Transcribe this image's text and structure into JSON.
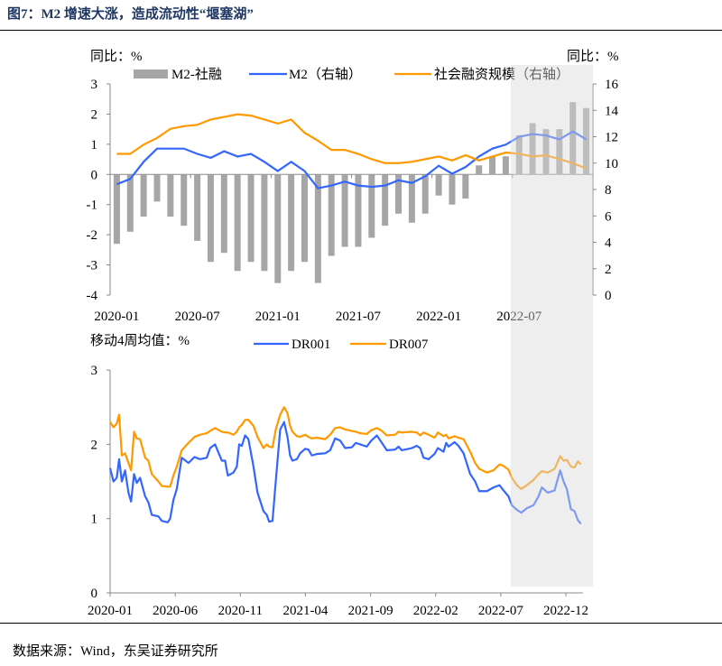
{
  "title": "图7：M2 增速大涨，造成流动性“堰塞湖”",
  "source": "数据来源：Wind，东吴证券研究所",
  "colors": {
    "bar": "#a6a6a6",
    "m2": "#3366ff",
    "tsf": "#ff9900",
    "dr001": "#3366ff",
    "dr007": "#ff9900",
    "shade": "#d9d9d9"
  },
  "chart_data": [
    {
      "type": "bar+line",
      "left_unit": "同比：%",
      "right_unit": "同比：%",
      "ylim_left": [
        -4,
        3
      ],
      "ylim_right": [
        0,
        16
      ],
      "yticks_left": [
        "3",
        "2",
        "1",
        "0",
        "-1",
        "-2",
        "-3",
        "-4"
      ],
      "yticks_right": [
        "16",
        "14",
        "12",
        "10",
        "8",
        "6",
        "4",
        "2",
        "0"
      ],
      "xtick_labels": [
        "2020-01",
        "2020-07",
        "2021-01",
        "2021-07",
        "2022-01",
        "2022-07"
      ],
      "legend": [
        "M2-社融",
        "M2（右轴）",
        "社会融资规模（右轴）"
      ],
      "shaded_from_index": 30,
      "bars": {
        "name": "M2-社融",
        "values": [
          -2.3,
          -1.9,
          -1.4,
          -0.9,
          -1.4,
          -1.7,
          -2.2,
          -2.9,
          -2.6,
          -3.2,
          -2.9,
          -3.2,
          -3.6,
          -3.2,
          -2.9,
          -3.6,
          -2.7,
          -2.4,
          -2.4,
          -2.1,
          -1.7,
          -1.3,
          -1.6,
          -1.3,
          -0.7,
          -1.0,
          -0.8,
          0.3,
          0.6,
          0.6,
          1.3,
          1.7,
          1.5,
          1.5,
          2.4,
          2.2
        ]
      },
      "series": [
        {
          "name": "M2（右轴）",
          "axis": "right",
          "values": [
            8.4,
            8.8,
            10.1,
            11.1,
            11.1,
            11.1,
            10.7,
            10.4,
            10.9,
            10.5,
            10.7,
            10.1,
            9.4,
            10.1,
            9.4,
            8.1,
            8.3,
            8.6,
            8.3,
            8.2,
            8.3,
            8.7,
            8.5,
            9.0,
            9.8,
            9.2,
            9.7,
            10.5,
            11.1,
            11.4,
            12.0,
            12.2,
            12.1,
            11.8,
            12.4,
            11.8
          ]
        },
        {
          "name": "社会融资规模（右轴）",
          "axis": "right",
          "values": [
            10.7,
            10.7,
            11.4,
            11.9,
            12.6,
            12.8,
            12.9,
            13.3,
            13.5,
            13.7,
            13.6,
            13.3,
            13.0,
            13.3,
            12.3,
            11.7,
            11.0,
            11.0,
            10.7,
            10.3,
            10.0,
            10.0,
            10.1,
            10.3,
            10.5,
            10.2,
            10.6,
            10.2,
            10.5,
            10.8,
            10.7,
            10.5,
            10.6,
            10.3,
            10.0,
            9.6
          ]
        }
      ]
    },
    {
      "type": "line",
      "y_unit": "移动4周均值：%",
      "ylim": [
        0,
        3
      ],
      "yticks": [
        "3",
        "2",
        "1",
        "0"
      ],
      "xtick_labels": [
        "2020-01",
        "2020-06",
        "2020-11",
        "2021-04",
        "2021-09",
        "2022-02",
        "2022-07",
        "2022-12"
      ],
      "x_unit": "months since 2020-01",
      "legend": [
        "DR001",
        "DR007"
      ],
      "x": [
        0,
        0.26,
        0.51,
        0.69,
        0.9,
        1.15,
        1.41,
        1.61,
        1.84,
        2.05,
        2.3,
        2.69,
        2.94,
        3.2,
        3.71,
        3.97,
        4.43,
        4.61,
        4.86,
        5.12,
        5.5,
        6.02,
        6.48,
        6.91,
        7.42,
        7.68,
        8.06,
        8.58,
        8.83,
        9.04,
        9.47,
        9.73,
        9.91,
        10.11,
        10.37,
        10.62,
        11.01,
        11.32,
        11.78,
        12.03,
        12.21,
        12.47,
        12.72,
        13.06,
        13.36,
        13.62,
        13.82,
        14.0,
        14.34,
        14.59,
        14.98,
        15.23,
        15.49,
        15.87,
        16.51,
        16.9,
        17.28,
        17.67,
        18.05,
        18.56,
        18.87,
        19.2,
        19.71,
        20.05,
        20.48,
        20.87,
        21.25,
        21.89,
        22.15,
        22.4,
        23.17,
        23.55,
        23.81,
        24.07,
        24.45,
        24.91,
        25.17,
        25.6,
        25.81,
        25.99,
        26.45,
        26.75,
        27.14,
        27.65,
        28.03,
        28.34,
        28.93,
        29.44,
        29.9,
        30.21,
        30.59,
        30.85,
        31.23,
        31.57,
        32.0,
        32.51,
        32.9,
        33.15,
        33.61,
        34.13,
        34.56,
        34.82,
        35.07,
        35.38,
        35.66,
        35.92,
        36.15
      ],
      "series": [
        {
          "name": "DR001",
          "values": [
            1.68,
            1.5,
            1.55,
            1.8,
            1.5,
            1.65,
            1.35,
            1.23,
            1.6,
            1.48,
            1.55,
            1.3,
            1.22,
            1.05,
            1.03,
            0.97,
            0.95,
            1.0,
            1.25,
            1.4,
            1.82,
            1.75,
            1.83,
            1.8,
            1.82,
            1.95,
            2.0,
            1.78,
            1.78,
            1.58,
            1.62,
            1.7,
            2.0,
            1.98,
            2.12,
            2.07,
            1.7,
            1.35,
            1.1,
            1.05,
            0.96,
            0.97,
            1.5,
            2.2,
            2.3,
            2.1,
            1.85,
            1.78,
            1.8,
            1.88,
            1.94,
            1.93,
            1.85,
            1.87,
            1.88,
            1.92,
            2.08,
            2.05,
            1.95,
            1.96,
            2.02,
            2.0,
            1.97,
            2.05,
            2.12,
            2.02,
            1.92,
            1.93,
            1.97,
            1.92,
            1.95,
            1.98,
            1.95,
            1.82,
            1.8,
            1.87,
            1.95,
            1.9,
            2.02,
            1.97,
            2.03,
            1.98,
            1.88,
            1.6,
            1.5,
            1.37,
            1.37,
            1.42,
            1.45,
            1.38,
            1.3,
            1.18,
            1.12,
            1.08,
            1.14,
            1.18,
            1.3,
            1.42,
            1.35,
            1.38,
            1.65,
            1.5,
            1.4,
            1.13,
            1.1,
            0.98,
            0.93
          ]
        },
        {
          "name": "DR007",
          "values": [
            2.3,
            2.23,
            2.28,
            2.4,
            1.85,
            1.88,
            1.75,
            1.65,
            2.17,
            2.08,
            2.07,
            1.82,
            1.78,
            1.6,
            1.5,
            1.44,
            1.43,
            1.43,
            1.58,
            1.7,
            1.92,
            2.02,
            2.1,
            2.13,
            2.15,
            2.18,
            2.22,
            2.17,
            2.16,
            2.16,
            2.13,
            2.17,
            2.23,
            2.26,
            2.33,
            2.33,
            2.25,
            2.1,
            1.95,
            2.0,
            1.97,
            1.96,
            2.2,
            2.4,
            2.5,
            2.42,
            2.25,
            2.17,
            2.11,
            2.1,
            2.13,
            2.1,
            2.08,
            2.09,
            2.07,
            2.13,
            2.22,
            2.23,
            2.2,
            2.18,
            2.17,
            2.15,
            2.14,
            2.19,
            2.22,
            2.18,
            2.12,
            2.13,
            2.17,
            2.16,
            2.17,
            2.16,
            2.12,
            2.16,
            2.13,
            2.09,
            2.16,
            2.11,
            2.13,
            2.08,
            2.11,
            2.09,
            2.07,
            1.9,
            1.75,
            1.67,
            1.62,
            1.65,
            1.73,
            1.71,
            1.66,
            1.55,
            1.45,
            1.4,
            1.45,
            1.52,
            1.6,
            1.64,
            1.62,
            1.67,
            1.84,
            1.78,
            1.79,
            1.7,
            1.69,
            1.77,
            1.73
          ]
        }
      ]
    }
  ]
}
